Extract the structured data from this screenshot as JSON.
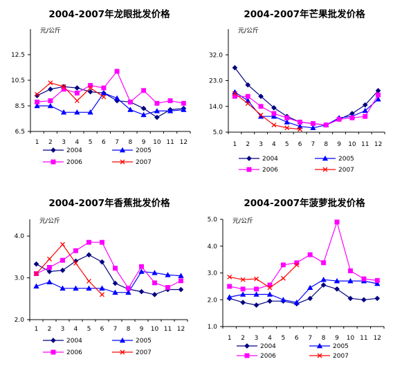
{
  "chart_data": [
    {
      "type": "line",
      "title": "2004-2007年龙眼批发价格",
      "unit_label": "元/公斤",
      "categories": [
        "1",
        "2",
        "3",
        "4",
        "5",
        "6",
        "7",
        "8",
        "9",
        "10",
        "11",
        "12"
      ],
      "ylim": [
        6.5,
        14.5
      ],
      "y_ticks": [
        6.5,
        8.5,
        10.5,
        12.5
      ],
      "y_tick_labels": [
        "6.5",
        "8.5",
        "10.5",
        "12.5"
      ],
      "series": [
        {
          "name": "2004",
          "color": "#000080",
          "marker": "diamond",
          "values": [
            9.3,
            9.8,
            10.0,
            9.9,
            9.6,
            9.5,
            8.9,
            8.8,
            8.3,
            7.6,
            8.2,
            8.3
          ]
        },
        {
          "name": "2005",
          "color": "#0000ff",
          "marker": "triangle",
          "values": [
            8.5,
            8.5,
            8.0,
            8.0,
            8.0,
            9.5,
            9.1,
            8.2,
            7.8,
            8.1,
            8.1,
            8.2
          ]
        },
        {
          "name": "2006",
          "color": "#ff00ff",
          "marker": "square",
          "values": [
            8.8,
            8.9,
            9.8,
            9.5,
            10.1,
            9.9,
            11.2,
            8.8,
            9.7,
            8.7,
            8.9,
            8.7
          ]
        },
        {
          "name": "2007",
          "color": "#ff0000",
          "marker": "x",
          "values": [
            9.4,
            10.3,
            10.0,
            8.9,
            9.9,
            9.2,
            null,
            null,
            null,
            null,
            null,
            null
          ]
        }
      ]
    },
    {
      "type": "line",
      "title": "2004-2007年芒果批发价格",
      "unit_label": "元/公斤",
      "categories": [
        "1",
        "2",
        "3",
        "4",
        "5",
        "6",
        "7",
        "8",
        "9",
        "10",
        "11",
        "12"
      ],
      "ylim": [
        5.0,
        41.0
      ],
      "y_ticks": [
        5.0,
        14.0,
        23.0,
        32.0
      ],
      "y_tick_labels": [
        "5.0",
        "14.0",
        "23.0",
        "32.0"
      ],
      "series": [
        {
          "name": "2004",
          "color": "#000080",
          "marker": "diamond",
          "values": [
            27.5,
            21.5,
            17.5,
            13.5,
            10.5,
            8.5,
            8.0,
            7.5,
            9.5,
            11.5,
            14.5,
            19.5
          ]
        },
        {
          "name": "2005",
          "color": "#0000ff",
          "marker": "triangle",
          "values": [
            19.0,
            16.0,
            10.5,
            10.5,
            8.5,
            7.0,
            6.5,
            7.5,
            10.0,
            10.5,
            12.5,
            16.5
          ]
        },
        {
          "name": "2006",
          "color": "#ff00ff",
          "marker": "square",
          "values": [
            17.5,
            17.5,
            14.0,
            11.5,
            10.0,
            8.5,
            8.0,
            7.5,
            9.5,
            10.0,
            10.5,
            18.0
          ]
        },
        {
          "name": "2007",
          "color": "#ff0000",
          "marker": "x",
          "values": [
            18.5,
            15.0,
            11.0,
            7.5,
            6.5,
            6.0,
            null,
            null,
            null,
            null,
            null,
            null
          ]
        }
      ]
    },
    {
      "type": "line",
      "title": "2004-2007年香蕉批发价格",
      "unit_label": "元/公斤",
      "categories": [
        "1",
        "2",
        "3",
        "4",
        "5",
        "6",
        "7",
        "8",
        "9",
        "10",
        "11",
        "12"
      ],
      "ylim": [
        2.0,
        4.4
      ],
      "y_ticks": [
        2.0,
        3.0,
        4.0
      ],
      "y_tick_labels": [
        "2.0",
        "3.0",
        "4.0"
      ],
      "series": [
        {
          "name": "2004",
          "color": "#000080",
          "marker": "diamond",
          "values": [
            3.33,
            3.15,
            3.18,
            3.4,
            3.55,
            3.38,
            2.87,
            2.73,
            2.67,
            2.6,
            2.72,
            2.72
          ]
        },
        {
          "name": "2005",
          "color": "#0000ff",
          "marker": "triangle",
          "values": [
            2.8,
            2.9,
            2.75,
            2.75,
            2.75,
            2.75,
            2.65,
            2.65,
            3.15,
            3.12,
            3.07,
            3.05
          ]
        },
        {
          "name": "2006",
          "color": "#ff00ff",
          "marker": "square",
          "values": [
            3.1,
            3.25,
            3.42,
            3.65,
            3.85,
            3.85,
            3.23,
            2.75,
            3.27,
            2.88,
            2.77,
            2.93
          ]
        },
        {
          "name": "2007",
          "color": "#ff0000",
          "marker": "x",
          "values": [
            3.1,
            3.45,
            3.8,
            3.35,
            2.92,
            2.6,
            null,
            null,
            null,
            null,
            null,
            null
          ]
        }
      ]
    },
    {
      "type": "line",
      "title": "2004-2007年菠萝批发价格",
      "unit_label": "元/公斤",
      "categories": [
        "1",
        "2",
        "3",
        "4",
        "5",
        "6",
        "7",
        "8",
        "9",
        "10",
        "11",
        "12"
      ],
      "ylim": [
        1.0,
        5.0
      ],
      "y_ticks": [
        1.0,
        2.0,
        3.0,
        4.0,
        5.0
      ],
      "y_tick_labels": [
        "1.0",
        "2.0",
        "3.0",
        "4.0",
        "5.0"
      ],
      "series": [
        {
          "name": "2004",
          "color": "#000080",
          "marker": "diamond",
          "values": [
            2.05,
            1.9,
            1.8,
            1.95,
            1.95,
            1.85,
            2.05,
            2.55,
            2.4,
            2.05,
            2.0,
            2.05
          ]
        },
        {
          "name": "2005",
          "color": "#0000ff",
          "marker": "triangle",
          "values": [
            2.1,
            2.2,
            2.2,
            2.2,
            2.0,
            1.9,
            2.45,
            2.75,
            2.7,
            2.7,
            2.7,
            2.6
          ]
        },
        {
          "name": "2006",
          "color": "#ff00ff",
          "marker": "square",
          "values": [
            2.5,
            2.4,
            2.4,
            2.55,
            3.3,
            3.38,
            3.68,
            3.38,
            4.9,
            3.08,
            2.78,
            2.72
          ]
        },
        {
          "name": "2007",
          "color": "#ff0000",
          "marker": "x",
          "values": [
            2.85,
            2.75,
            2.78,
            2.45,
            2.8,
            3.3,
            null,
            null,
            null,
            null,
            null,
            null
          ]
        }
      ]
    }
  ]
}
